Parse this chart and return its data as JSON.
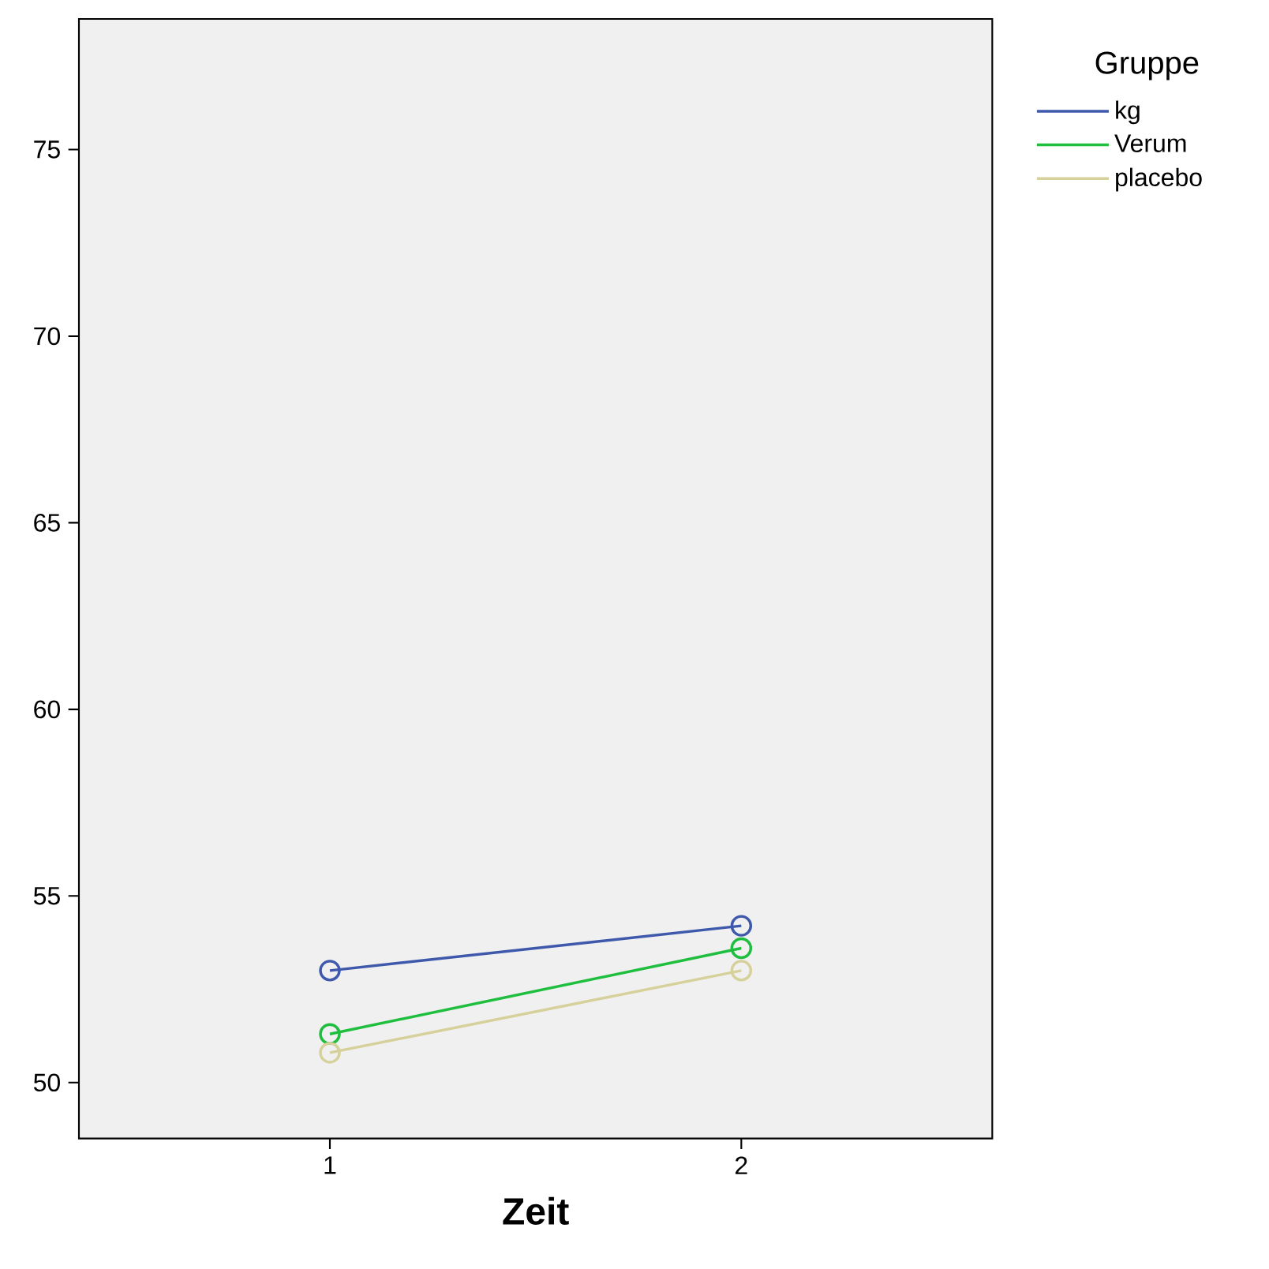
{
  "chart_data": {
    "type": "line",
    "xlabel": "Zeit",
    "legend_title": "Gruppe",
    "categories": [
      "1",
      "2"
    ],
    "series": [
      {
        "name": "kg",
        "color": "#3e58ac",
        "values": [
          53.0,
          54.2
        ]
      },
      {
        "name": "Verum",
        "color": "#1fbe3f",
        "values": [
          51.3,
          53.6
        ]
      },
      {
        "name": "placebo",
        "color": "#d6d09a",
        "values": [
          50.8,
          53.0
        ]
      }
    ],
    "ylim": [
      48.5,
      78.5
    ],
    "yticks": [
      50,
      55,
      60,
      65,
      70,
      75
    ],
    "marker": "circle",
    "line_style": "solid",
    "legend": "top right",
    "grid": false
  }
}
